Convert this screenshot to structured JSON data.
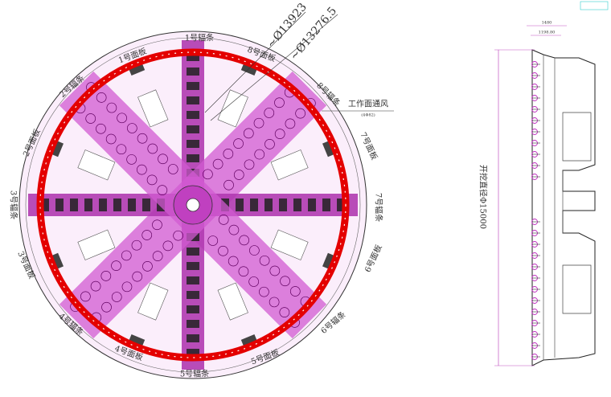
{
  "drawing": {
    "spokes": [
      "1号辐条",
      "2号辐条",
      "3号辐条",
      "4号辐条",
      "5号辐条",
      "6号辐条",
      "7号辐条",
      "8号辐条"
    ],
    "panels": [
      "1号面板",
      "2号面板",
      "3号面板",
      "4号面板",
      "5号面板",
      "6号面板",
      "7号面板",
      "8号面板"
    ],
    "diameters": [
      "~Ø13923",
      "~Ø13276.5"
    ],
    "ventilation": {
      "label": "工作面通风",
      "spec": "(4Φ82)"
    },
    "side_view": {
      "excavation_diameter": "开挖直径Φ15000",
      "dimensions": [
        "1480",
        "1198.80"
      ]
    }
  }
}
